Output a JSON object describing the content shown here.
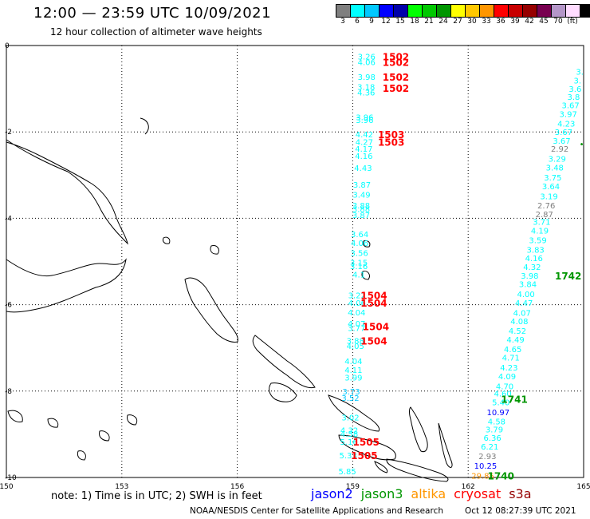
{
  "title": "12:00 — 23:59 UTC 10/09/2021",
  "subtitle": "12 hour collection of altimeter wave heights",
  "colorbar": {
    "colors": [
      "#7f7f7f",
      "#00ffff",
      "#00c8ff",
      "#0000ff",
      "#0000aa",
      "#00ff00",
      "#00c800",
      "#009600",
      "#ffff00",
      "#ffc800",
      "#ff9600",
      "#ff0000",
      "#c80000",
      "#960000",
      "#780050",
      "#b496c8",
      "#ffdcff",
      "#000000"
    ],
    "labels": [
      "3",
      "6",
      "9",
      "12",
      "15",
      "18",
      "21",
      "24",
      "27",
      "30",
      "33",
      "36",
      "39",
      "42",
      "45",
      "70",
      "(ft)"
    ]
  },
  "axes": {
    "x_ticks": [
      "150",
      "153",
      "156",
      "159",
      "162",
      "165"
    ],
    "y_ticks": [
      "0",
      "-2",
      "-4",
      "-6",
      "-8",
      "-10"
    ]
  },
  "colors": {
    "jason2": "#0000ff",
    "jason3": "#009600",
    "altika": "#ff9600",
    "cryosat": "#ff0000",
    "s3a": "#960000"
  },
  "track_west": [
    {
      "v": "3.26",
      "lon": 159.36,
      "lat": -0.25,
      "c": "#00ffff"
    },
    {
      "v": "4.06",
      "lon": 159.36,
      "lat": -0.38,
      "c": "#00ffff"
    },
    {
      "v": "3.98",
      "lon": 159.36,
      "lat": -0.72,
      "c": "#00ffff"
    },
    {
      "v": "3.18",
      "lon": 159.35,
      "lat": -0.95,
      "c": "#00ffff"
    },
    {
      "v": "4.36",
      "lon": 159.35,
      "lat": -1.08,
      "c": "#00ffff"
    },
    {
      "v": "3.96",
      "lon": 159.31,
      "lat": -1.65,
      "c": "#00ffff"
    },
    {
      "v": "3.96",
      "lon": 159.31,
      "lat": -1.72,
      "c": "#00ffff"
    },
    {
      "v": "4.42",
      "lon": 159.3,
      "lat": -2.05,
      "c": "#00ffff"
    },
    {
      "v": "4.27",
      "lon": 159.3,
      "lat": -2.23,
      "c": "#00ffff"
    },
    {
      "v": "4.17",
      "lon": 159.29,
      "lat": -2.38,
      "c": "#00ffff"
    },
    {
      "v": "4.16",
      "lon": 159.29,
      "lat": -2.55,
      "c": "#00ffff"
    },
    {
      "v": "4.43",
      "lon": 159.27,
      "lat": -2.83,
      "c": "#00ffff"
    },
    {
      "v": "3.87",
      "lon": 159.24,
      "lat": -3.22,
      "c": "#00ffff"
    },
    {
      "v": "3.49",
      "lon": 159.23,
      "lat": -3.45,
      "c": "#00ffff"
    },
    {
      "v": "3.88",
      "lon": 159.22,
      "lat": -3.7,
      "c": "#00ffff"
    },
    {
      "v": "3.88",
      "lon": 159.22,
      "lat": -3.78,
      "c": "#00ffff"
    },
    {
      "v": "3.87",
      "lon": 159.22,
      "lat": -3.92,
      "c": "#00ffff"
    },
    {
      "v": "3.64",
      "lon": 159.18,
      "lat": -4.36,
      "c": "#00ffff"
    },
    {
      "v": "4.06",
      "lon": 159.18,
      "lat": -4.57,
      "c": "#00ffff"
    },
    {
      "v": "3.56",
      "lon": 159.17,
      "lat": -4.8,
      "c": "#00ffff"
    },
    {
      "v": "3.15",
      "lon": 159.16,
      "lat": -5.02,
      "c": "#00ffff"
    },
    {
      "v": "3.16",
      "lon": 159.16,
      "lat": -5.1,
      "c": "#00ffff"
    },
    {
      "v": "4.1",
      "lon": 159.16,
      "lat": -5.3,
      "c": "#00ffff"
    },
    {
      "v": "3.22",
      "lon": 159.11,
      "lat": -5.78,
      "c": "#00ffff"
    },
    {
      "v": "4.06",
      "lon": 159.11,
      "lat": -5.95,
      "c": "#00ffff"
    },
    {
      "v": "4.04",
      "lon": 159.1,
      "lat": -6.17,
      "c": "#00ffff"
    },
    {
      "v": "4.07",
      "lon": 159.1,
      "lat": -6.43,
      "c": "#00ffff"
    },
    {
      "v": "3.77",
      "lon": 159.1,
      "lat": -6.53,
      "c": "#00ffff"
    },
    {
      "v": "3.88",
      "lon": 159.07,
      "lat": -6.83,
      "c": "#00ffff"
    },
    {
      "v": "4.05",
      "lon": 159.07,
      "lat": -6.95,
      "c": "#00ffff"
    },
    {
      "v": "4.04",
      "lon": 159.02,
      "lat": -7.3,
      "c": "#00ffff"
    },
    {
      "v": "4.11",
      "lon": 159.02,
      "lat": -7.5,
      "c": "#00ffff"
    },
    {
      "v": "3.99",
      "lon": 159.02,
      "lat": -7.68,
      "c": "#00ffff"
    },
    {
      "v": "3.73",
      "lon": 158.96,
      "lat": -8.0,
      "c": "#00c8ff"
    },
    {
      "v": "3.52",
      "lon": 158.94,
      "lat": -8.15,
      "c": "#00c8ff"
    },
    {
      "v": "3.02",
      "lon": 158.94,
      "lat": -8.6,
      "c": "#00ffff"
    },
    {
      "v": "4.32",
      "lon": 158.91,
      "lat": -8.9,
      "c": "#00ffff"
    },
    {
      "v": "4.58",
      "lon": 158.91,
      "lat": -8.98,
      "c": "#00ffff"
    },
    {
      "v": "5.16",
      "lon": 158.9,
      "lat": -9.17,
      "c": "#00ffff"
    },
    {
      "v": "5.33",
      "lon": 158.88,
      "lat": -9.48,
      "c": "#00ffff"
    },
    {
      "v": "5.85",
      "lon": 158.86,
      "lat": -9.85,
      "c": "#00ffff"
    }
  ],
  "track_east": [
    {
      "v": "3.",
      "lon": 164.9,
      "lat": -0.6,
      "c": "#00ffff"
    },
    {
      "v": "3.",
      "lon": 164.84,
      "lat": -0.8,
      "c": "#00ffff"
    },
    {
      "v": "3.6",
      "lon": 164.78,
      "lat": -1.0,
      "c": "#00ffff"
    },
    {
      "v": "3.8",
      "lon": 164.74,
      "lat": -1.18,
      "c": "#00ffff"
    },
    {
      "v": "3.67",
      "lon": 164.66,
      "lat": -1.38,
      "c": "#00ffff"
    },
    {
      "v": "3.97",
      "lon": 164.6,
      "lat": -1.58,
      "c": "#00ffff"
    },
    {
      "v": "4.23",
      "lon": 164.55,
      "lat": -1.8,
      "c": "#00ffff"
    },
    {
      "v": "3.67",
      "lon": 164.48,
      "lat": -2.0,
      "c": "#00ffff"
    },
    {
      "v": "3.67",
      "lon": 164.43,
      "lat": -2.2,
      "c": "#00ffff"
    },
    {
      "v": "2.92",
      "lon": 164.38,
      "lat": -2.38,
      "c": "#7f7f7f"
    },
    {
      "v": "3.29",
      "lon": 164.31,
      "lat": -2.62,
      "c": "#00ffff"
    },
    {
      "v": "3.48",
      "lon": 164.25,
      "lat": -2.82,
      "c": "#00ffff"
    },
    {
      "v": "3.75",
      "lon": 164.2,
      "lat": -3.05,
      "c": "#00ffff"
    },
    {
      "v": "3.64",
      "lon": 164.15,
      "lat": -3.25,
      "c": "#00ffff"
    },
    {
      "v": "3.19",
      "lon": 164.1,
      "lat": -3.48,
      "c": "#00ffff"
    },
    {
      "v": "2.76",
      "lon": 164.03,
      "lat": -3.7,
      "c": "#7f7f7f"
    },
    {
      "v": "2.87",
      "lon": 163.98,
      "lat": -3.9,
      "c": "#7f7f7f"
    },
    {
      "v": "3.71",
      "lon": 163.91,
      "lat": -4.08,
      "c": "#00ffff"
    },
    {
      "v": "4.19",
      "lon": 163.86,
      "lat": -4.28,
      "c": "#00ffff"
    },
    {
      "v": "3.59",
      "lon": 163.81,
      "lat": -4.5,
      "c": "#00ffff"
    },
    {
      "v": "3.83",
      "lon": 163.75,
      "lat": -4.72,
      "c": "#00ffff"
    },
    {
      "v": "4.16",
      "lon": 163.71,
      "lat": -4.92,
      "c": "#00ffff"
    },
    {
      "v": "4.32",
      "lon": 163.66,
      "lat": -5.12,
      "c": "#00ffff"
    },
    {
      "v": "3.98",
      "lon": 163.6,
      "lat": -5.32,
      "c": "#00ffff"
    },
    {
      "v": "3.84",
      "lon": 163.55,
      "lat": -5.52,
      "c": "#00ffff"
    },
    {
      "v": "4.00",
      "lon": 163.5,
      "lat": -5.75,
      "c": "#00ffff"
    },
    {
      "v": "4.47",
      "lon": 163.45,
      "lat": -5.95,
      "c": "#00ffff"
    },
    {
      "v": "4.07",
      "lon": 163.4,
      "lat": -6.18,
      "c": "#00ffff"
    },
    {
      "v": "4.08",
      "lon": 163.33,
      "lat": -6.38,
      "c": "#00ffff"
    },
    {
      "v": "4.52",
      "lon": 163.28,
      "lat": -6.6,
      "c": "#00ffff"
    },
    {
      "v": "4.49",
      "lon": 163.23,
      "lat": -6.8,
      "c": "#00ffff"
    },
    {
      "v": "4.65",
      "lon": 163.16,
      "lat": -7.02,
      "c": "#00ffff"
    },
    {
      "v": "4.71",
      "lon": 163.11,
      "lat": -7.22,
      "c": "#00ffff"
    },
    {
      "v": "4.23",
      "lon": 163.06,
      "lat": -7.45,
      "c": "#00ffff"
    },
    {
      "v": "4.09",
      "lon": 163.01,
      "lat": -7.65,
      "c": "#00ffff"
    },
    {
      "v": "4.70",
      "lon": 162.95,
      "lat": -7.88,
      "c": "#00ffff"
    },
    {
      "v": "4.60",
      "lon": 162.9,
      "lat": -8.05,
      "c": "#00ffff"
    },
    {
      "v": "5.40",
      "lon": 162.85,
      "lat": -8.25,
      "c": "#00ffff"
    },
    {
      "v": "10.97",
      "lon": 162.78,
      "lat": -8.48,
      "c": "#0000ff"
    },
    {
      "v": "4.58",
      "lon": 162.74,
      "lat": -8.7,
      "c": "#00ffff"
    },
    {
      "v": "3.79",
      "lon": 162.68,
      "lat": -8.88,
      "c": "#00ffff"
    },
    {
      "v": "6.36",
      "lon": 162.63,
      "lat": -9.08,
      "c": "#00ffff"
    },
    {
      "v": "6.21",
      "lon": 162.56,
      "lat": -9.28,
      "c": "#00ffff"
    },
    {
      "v": "2.93",
      "lon": 162.5,
      "lat": -9.5,
      "c": "#7f7f7f"
    },
    {
      "v": "10.25",
      "lon": 162.45,
      "lat": -9.72,
      "c": "#0000ff"
    },
    {
      "v": "29.85",
      "lon": 162.38,
      "lat": -9.95,
      "c": "#ff9600"
    }
  ],
  "time_labels": [
    {
      "t": "1502",
      "lon": 160.12,
      "lat": -0.25,
      "c": "#ff0000"
    },
    {
      "t": "1502",
      "lon": 160.12,
      "lat": -0.38,
      "c": "#ff0000"
    },
    {
      "t": "1502",
      "lon": 160.12,
      "lat": -0.72,
      "c": "#ff0000"
    },
    {
      "t": "1502",
      "lon": 160.12,
      "lat": -0.98,
      "c": "#ff0000"
    },
    {
      "t": "1503",
      "lon": 160.0,
      "lat": -2.05,
      "c": "#ff0000"
    },
    {
      "t": "1503",
      "lon": 160.0,
      "lat": -2.23,
      "c": "#ff0000"
    },
    {
      "t": "1504",
      "lon": 159.55,
      "lat": -5.78,
      "c": "#ff0000"
    },
    {
      "t": "1504",
      "lon": 159.55,
      "lat": -5.95,
      "c": "#ff0000"
    },
    {
      "t": "1504",
      "lon": 159.6,
      "lat": -6.5,
      "c": "#ff0000"
    },
    {
      "t": "1504",
      "lon": 159.55,
      "lat": -6.83,
      "c": "#ff0000"
    },
    {
      "t": "1505",
      "lon": 159.35,
      "lat": -9.17,
      "c": "#ff0000"
    },
    {
      "t": "1505",
      "lon": 159.3,
      "lat": -9.48,
      "c": "#ff0000"
    },
    {
      "t": "1742",
      "lon": 164.6,
      "lat": -5.32,
      "c": "#009600"
    },
    {
      "t": "1741",
      "lon": 163.2,
      "lat": -8.18,
      "c": "#009600"
    },
    {
      "t": "1740",
      "lon": 162.85,
      "lat": -9.95,
      "c": "#009600"
    }
  ],
  "note": "note:  1) Time is in UTC;  2) SWH is in feet",
  "legend": [
    "jason2",
    "jason3",
    "altika",
    "cryosat",
    "s3a"
  ],
  "credit": "NOAA/NESDIS Center for Satellite Applications and Research",
  "stamp": "Oct 12 08:27:39 UTC 2021"
}
